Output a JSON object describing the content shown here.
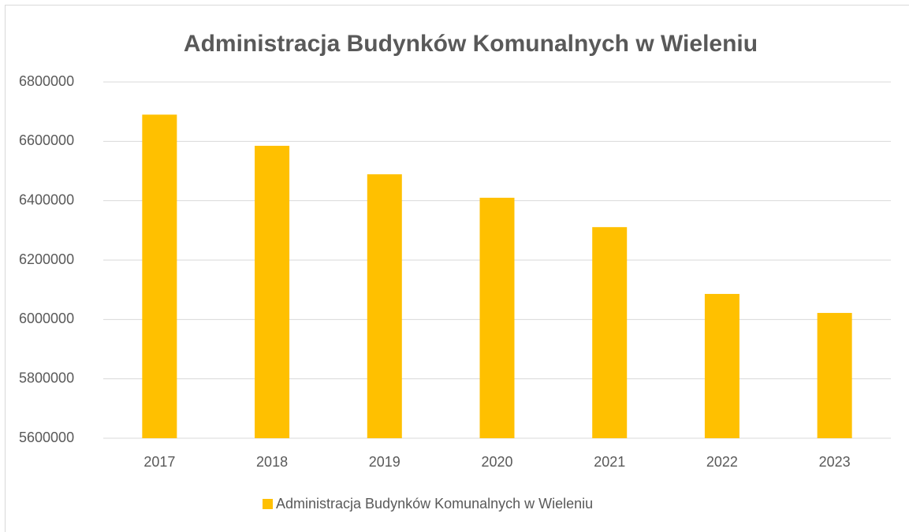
{
  "chart_data": {
    "type": "bar",
    "title": "Administracja Budynków Komunalnych w Wieleniu",
    "categories": [
      "2017",
      "2018",
      "2019",
      "2020",
      "2021",
      "2022",
      "2023"
    ],
    "series": [
      {
        "name": "Administracja Budynków Komunalnych w Wieleniu",
        "color": "#ffc000",
        "values": [
          6690000,
          6585000,
          6489000,
          6410000,
          6311000,
          6086000,
          6022000
        ]
      }
    ],
    "ylim": [
      5600000,
      6800000
    ],
    "yticks": [
      5600000,
      5800000,
      6000000,
      6200000,
      6400000,
      6600000,
      6800000
    ],
    "grid": true,
    "legend": "bottom"
  }
}
